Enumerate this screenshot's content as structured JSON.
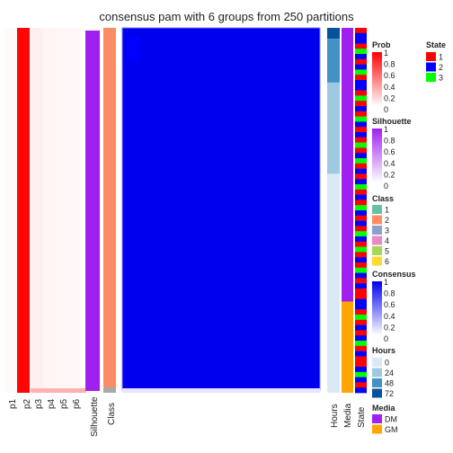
{
  "chart_data": {
    "type": "heatmap",
    "title": "consensus pam with 6 groups from 250 partitions",
    "prob_columns": [
      "p1",
      "p2",
      "p3",
      "p4",
      "p5",
      "p6"
    ],
    "prob_values": [
      0.02,
      0.98,
      0.06,
      0.04,
      0.03,
      0.03
    ],
    "silhouette_label": "Silhouette",
    "class_label": "Class",
    "right_columns": [
      "Hours",
      "Media",
      "State"
    ],
    "colors": {
      "prob_max": "#ff0000",
      "consensus": "#0000ee",
      "consensus_light": "#e6e6ff",
      "silhouette": "#a020f0",
      "class2": "#fc8d62",
      "media_dm": "#a020f0",
      "media_gm": "#ffa500",
      "state1": "#ff0000",
      "state2": "#0000ff",
      "state3": "#00ff00"
    },
    "hours_blocks": [
      {
        "label": "72",
        "frac": 0.03
      },
      {
        "label": "48",
        "frac": 0.12
      },
      {
        "label": "24",
        "frac": 0.25
      },
      {
        "label": "0",
        "frac": 0.27
      },
      {
        "label": "0",
        "frac": 0.33
      }
    ],
    "media_blocks": [
      {
        "label": "DM",
        "frac": 0.75
      },
      {
        "label": "GM",
        "frac": 0.25
      }
    ],
    "state_pattern": [
      1,
      2,
      2,
      1,
      3,
      2,
      1,
      2,
      3,
      1,
      2,
      2,
      1,
      3,
      1,
      2,
      1,
      3,
      2,
      1,
      2,
      1,
      3,
      1,
      2,
      3,
      1,
      2,
      1,
      2,
      3,
      1,
      2,
      1,
      3,
      2,
      1,
      2,
      1,
      3,
      2,
      1,
      3,
      1,
      2,
      1,
      3,
      2,
      1,
      2,
      1,
      1,
      2,
      2,
      1,
      3,
      1,
      2,
      1,
      2,
      3,
      1,
      2,
      1,
      1,
      2,
      3,
      2,
      1,
      2
    ]
  },
  "legends": {
    "prob": {
      "title": "Prob",
      "ticks": [
        "1",
        "0.8",
        "0.6",
        "0.4",
        "0.2",
        "0"
      ]
    },
    "state": {
      "title": "State",
      "items": [
        {
          "label": "1",
          "color": "#ff0000"
        },
        {
          "label": "2",
          "color": "#0000ff"
        },
        {
          "label": "3",
          "color": "#00ff00"
        }
      ]
    },
    "silhouette": {
      "title": "Silhouette",
      "ticks": [
        "1",
        "0.8",
        "0.6",
        "0.4",
        "0.2",
        "0"
      ]
    },
    "class": {
      "title": "Class",
      "items": [
        {
          "label": "1",
          "color": "#66c2a5"
        },
        {
          "label": "2",
          "color": "#fc8d62"
        },
        {
          "label": "3",
          "color": "#8da0cb"
        },
        {
          "label": "4",
          "color": "#e78ac3"
        },
        {
          "label": "5",
          "color": "#a6d854"
        },
        {
          "label": "6",
          "color": "#ffd92f"
        }
      ]
    },
    "consensus": {
      "title": "Consensus",
      "ticks": [
        "1",
        "0.8",
        "0.6",
        "0.4",
        "0.2",
        "0"
      ]
    },
    "hours": {
      "title": "Hours",
      "items": [
        {
          "label": "0",
          "color": "#dbe9f6"
        },
        {
          "label": "24",
          "color": "#9ecae1"
        },
        {
          "label": "48",
          "color": "#4292c6"
        },
        {
          "label": "72",
          "color": "#08519c"
        }
      ]
    },
    "media": {
      "title": "Media",
      "items": [
        {
          "label": "DM",
          "color": "#a020f0"
        },
        {
          "label": "GM",
          "color": "#ffa500"
        }
      ]
    }
  }
}
